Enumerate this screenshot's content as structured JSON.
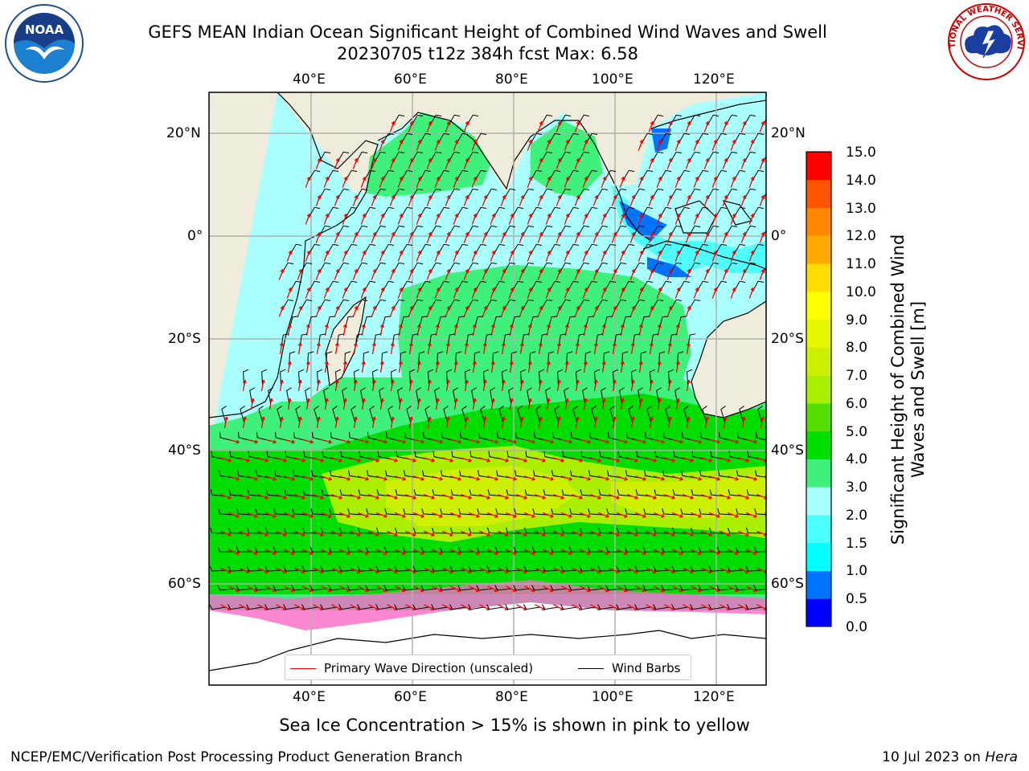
{
  "title": {
    "line1": "GEFS MEAN Indian Ocean Significant Height of Combined Wind Waves and Swell",
    "line2": "20230705 t12z 384h fcst   Max: 6.58"
  },
  "logos": {
    "noaa": {
      "text": "NOAA",
      "icon": "noaa-gull-icon"
    },
    "nws": {
      "text": "NATIONAL WEATHER SERVICE",
      "icon": "nws-cloud-lightning-icon"
    }
  },
  "map": {
    "extent": {
      "lon_min": 20,
      "lon_max": 130,
      "lat_min": -73,
      "lat_max": 28
    },
    "projection": "mercator",
    "colors": {
      "land": "#efecdc",
      "ocean_high": "#aaffff",
      "ocean_mid": "#3ff07a",
      "grid": "#b0b0b0",
      "wave_arrow": "#ff0000",
      "wind_barb": "#000000"
    },
    "lon_ticks": [
      "40°E",
      "60°E",
      "80°E",
      "100°E",
      "120°E"
    ],
    "lat_ticks_left": [
      "20°N",
      "0°",
      "20°S",
      "40°S",
      "60°S"
    ],
    "lat_ticks_right": [
      "20°N",
      "0°",
      "20°S",
      "40°S",
      "60°S"
    ]
  },
  "colorbar": {
    "label": "Significant Height of Combined Wind Waves and Swell [m]",
    "ticks": [
      "15.0",
      "14.0",
      "13.0",
      "12.0",
      "11.0",
      "10.0",
      "9.0",
      "8.0",
      "7.0",
      "6.0",
      "5.0",
      "4.0",
      "3.0",
      "2.0",
      "1.5",
      "1.0",
      "0.5",
      "0.0"
    ],
    "levels_bottom_to_top": [
      0.0,
      0.5,
      1.0,
      1.5,
      2.0,
      3.0,
      4.0,
      5.0,
      6.0,
      7.0,
      8.0,
      9.0,
      10.0,
      11.0,
      12.0,
      13.0,
      14.0,
      15.0
    ],
    "colors_bottom_to_top": [
      "#0000ff",
      "#0073ff",
      "#00ffff",
      "#4dffff",
      "#aaffff",
      "#3ff07a",
      "#00dd00",
      "#55dd00",
      "#aaee00",
      "#ccf000",
      "#e6f500",
      "#ffff00",
      "#ffdd00",
      "#ffaa00",
      "#ff8800",
      "#ff5500",
      "#ff0000"
    ]
  },
  "legend": {
    "wave": "Primary Wave Direction (unscaled)",
    "wind": "Wind Barbs"
  },
  "note": "Sea Ice Concentration > 15% is shown in pink to yellow",
  "footer": {
    "left": "NCEP/EMC/Verification Post Processing Product Generation Branch",
    "date": "10 Jul 2023 on ",
    "host": "Hera"
  }
}
